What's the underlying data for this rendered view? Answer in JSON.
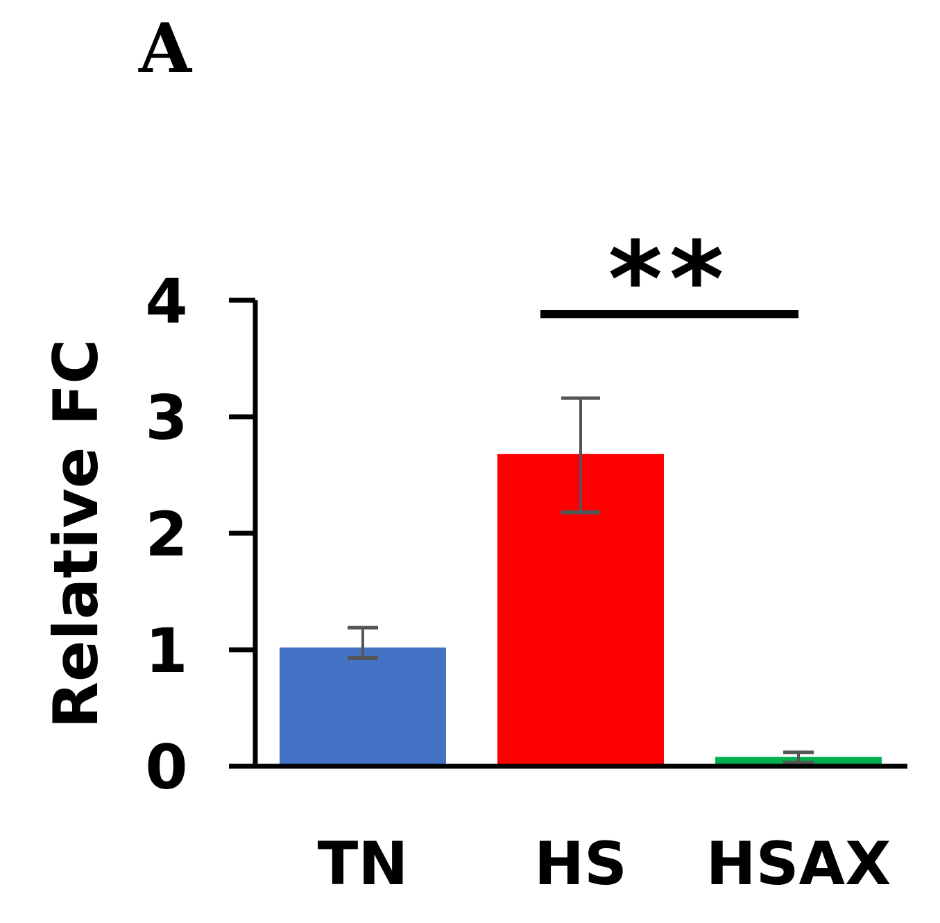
{
  "panel_label": "A",
  "chart_data": {
    "type": "bar",
    "categories": [
      "TN",
      "HS",
      "HSAX"
    ],
    "values": [
      1.02,
      2.68,
      0.08
    ],
    "errors_plus": [
      0.17,
      0.48,
      0.04
    ],
    "errors_minus": [
      0.09,
      0.5,
      0.05
    ],
    "bar_colors": [
      "#4472c4",
      "#ff0000",
      "#00b050"
    ],
    "ylabel": "Relative FC",
    "xlabel": "",
    "ylim": [
      0,
      4
    ],
    "yticks": [
      "0",
      "1",
      "2",
      "3",
      "4"
    ],
    "grid": false,
    "significance": {
      "from": "HS",
      "to": "HSAX",
      "label": "**"
    }
  }
}
